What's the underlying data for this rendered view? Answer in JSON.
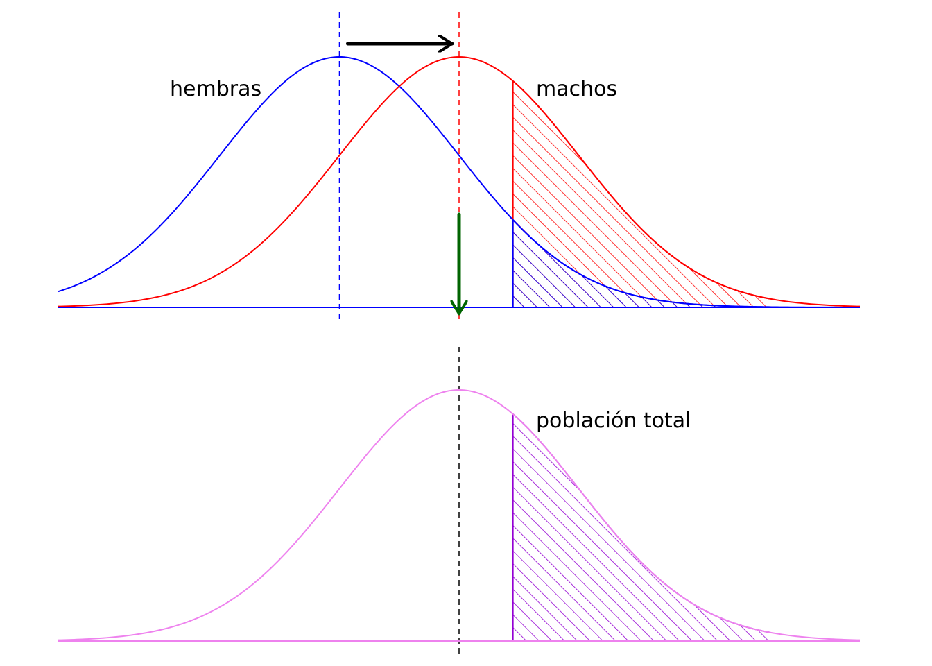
{
  "labels": {
    "females": "hembras",
    "males": "machos",
    "total": "población total"
  },
  "colors": {
    "females": "#0000ff",
    "males": "#ff0000",
    "total": "#ee82ee",
    "total_shade": "#9400d3",
    "shift_arrow": "#000000",
    "down_arrow": "#006400",
    "total_mean_line": "#000000"
  },
  "model": {
    "female_mean": -1,
    "male_mean": 0,
    "sd": 1,
    "threshold": 0.45,
    "x_range": [
      -3.35,
      3.35
    ],
    "tail_end": 2.6
  }
}
